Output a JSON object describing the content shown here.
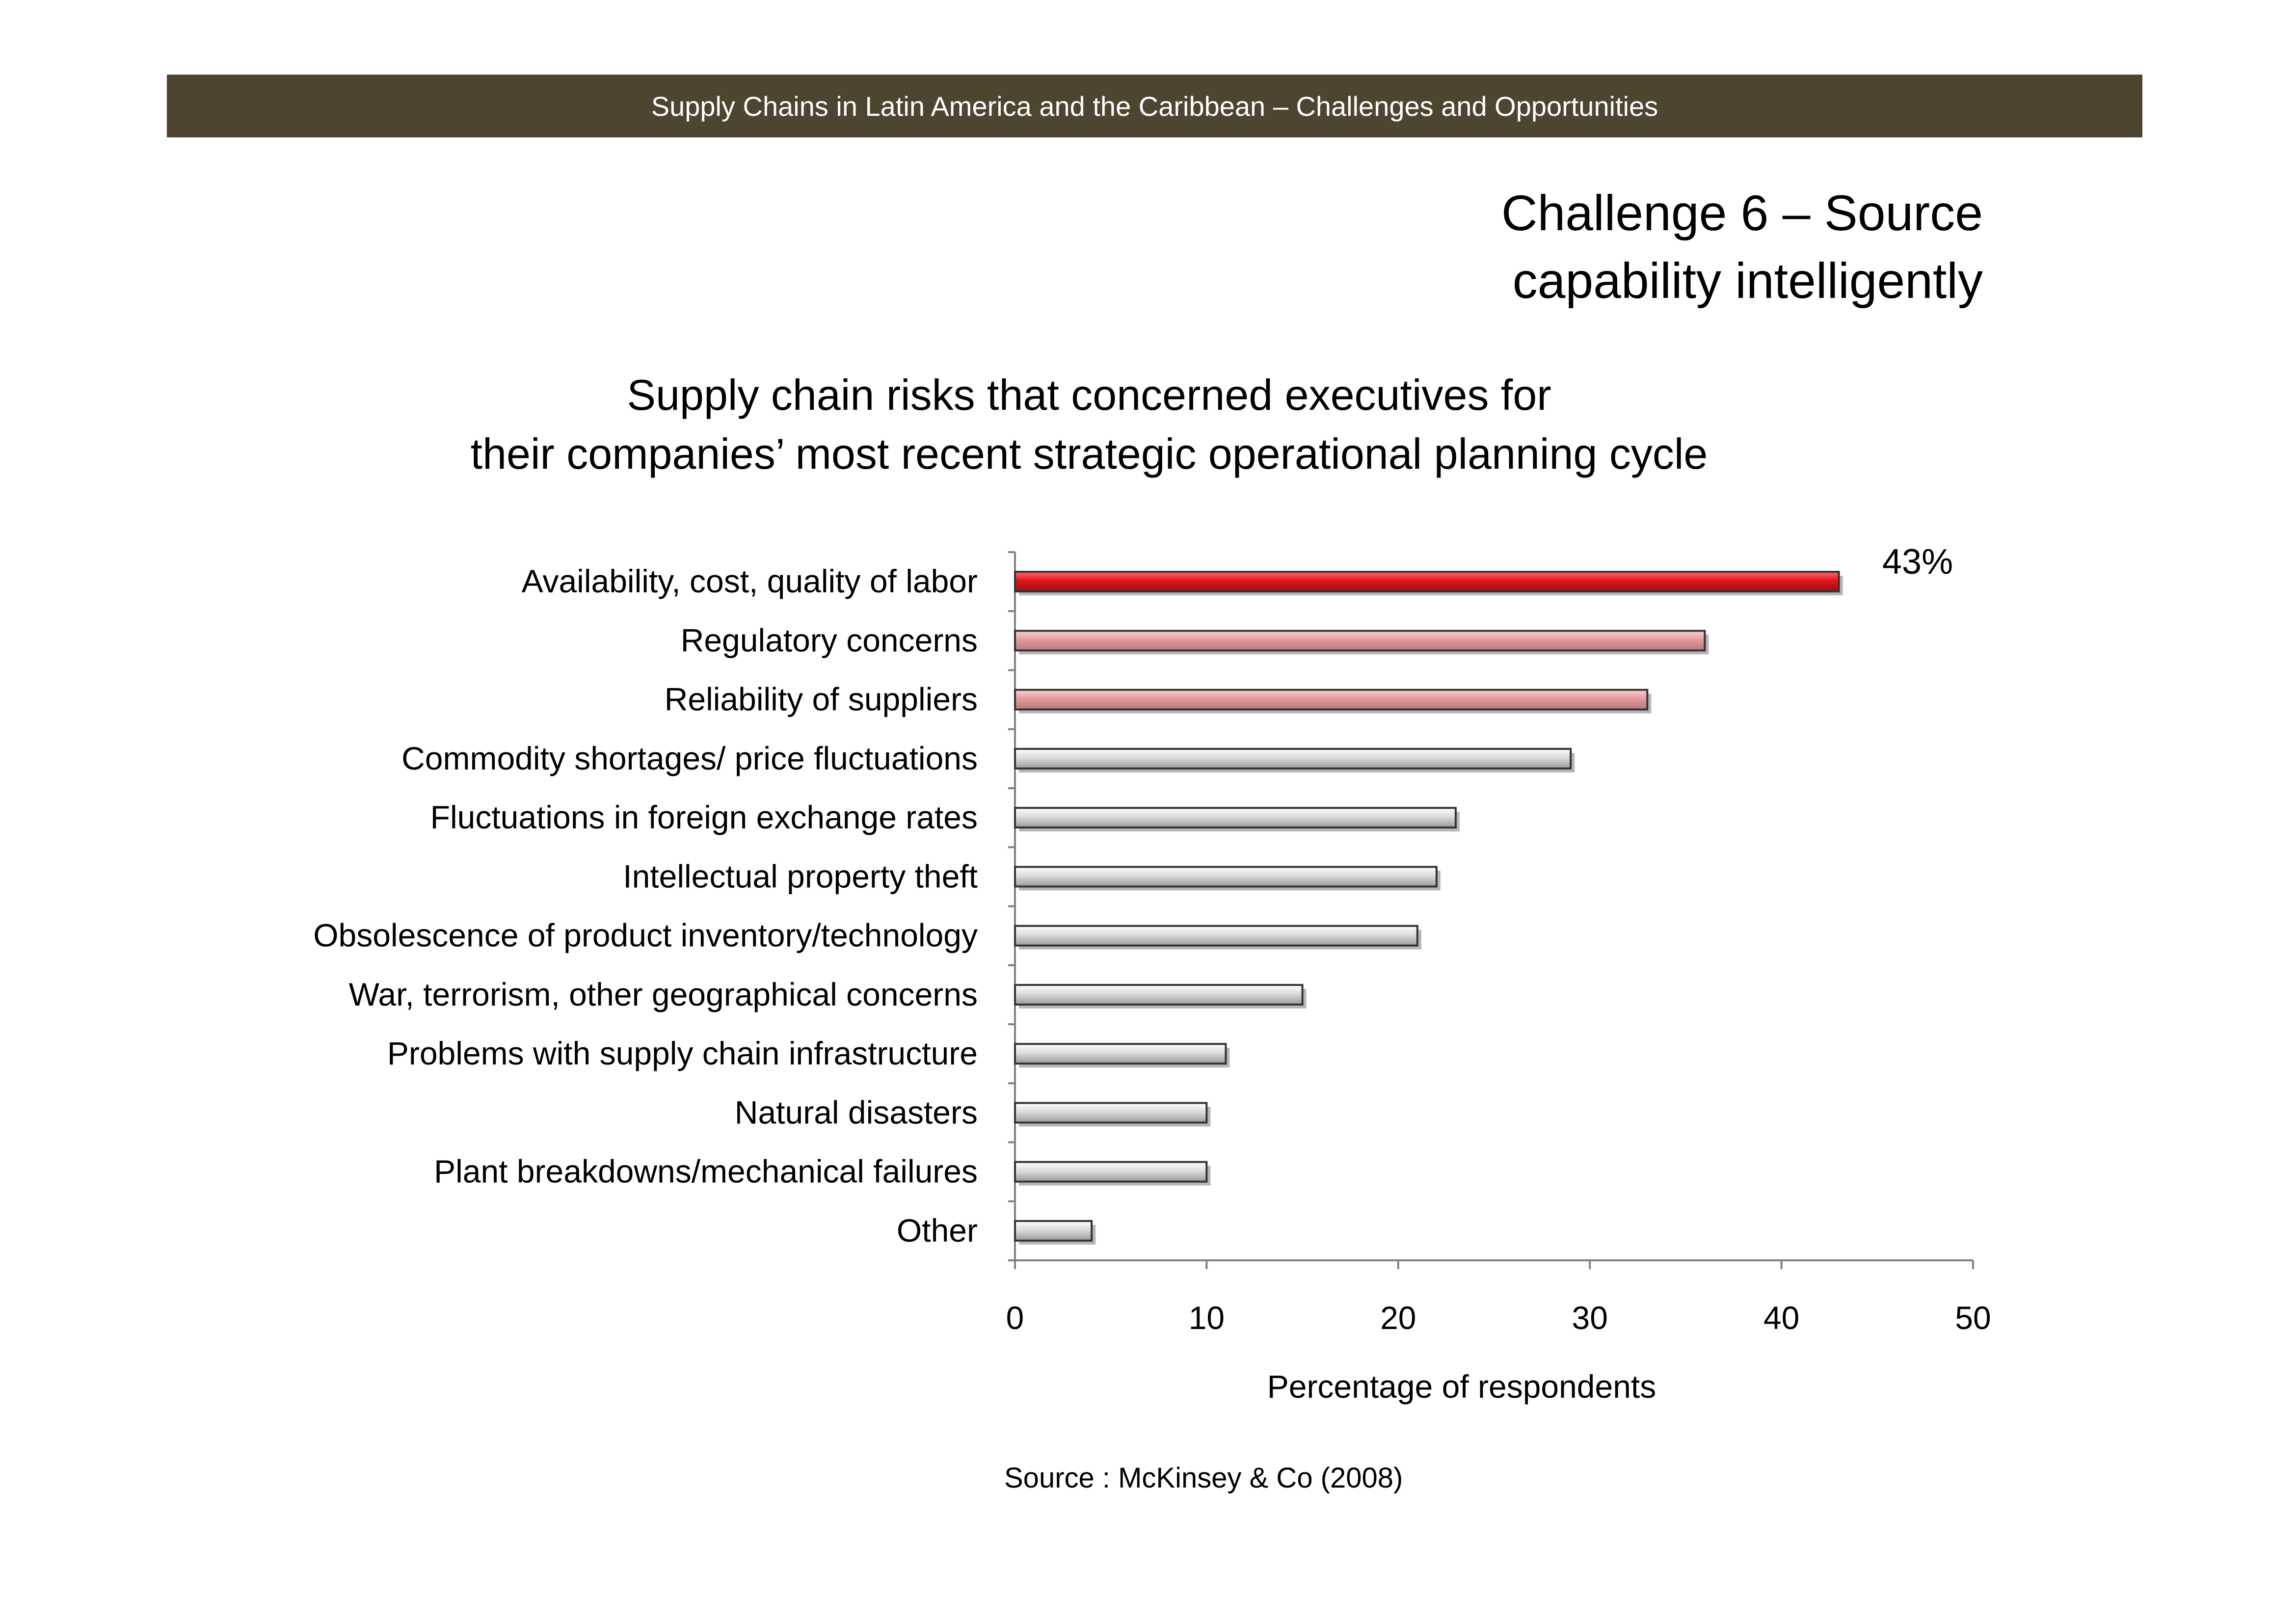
{
  "header": {
    "title": "Supply Chains in Latin America and the Caribbean – Challenges  and Opportunities",
    "bar_color": "#4d4530"
  },
  "slide": {
    "title_line1": "Challenge 6  –   Source",
    "title_line2": "capability intelligently"
  },
  "chart_data": {
    "type": "bar",
    "orientation": "horizontal",
    "title_line1": "Supply chain risks that concerned executives for",
    "title_line2": "their companies’ most recent strategic operational planning cycle",
    "categories": [
      "Availability, cost, quality of labor",
      "Regulatory concerns",
      "Reliability of suppliers",
      "Commodity shortages/ price fluctuations",
      "Fluctuations in foreign exchange rates",
      "Intellectual property theft",
      "Obsolescence of product inventory/technology",
      "War, terrorism, other geographical concerns",
      "Problems with supply chain infrastructure",
      "Natural disasters",
      "Plant breakdowns/mechanical failures",
      "Other"
    ],
    "values": [
      43,
      36,
      33,
      29,
      23,
      22,
      21,
      15,
      11,
      10,
      10,
      4
    ],
    "bar_styles": [
      "red",
      "pink",
      "pink",
      "gray",
      "gray",
      "gray",
      "gray",
      "gray",
      "gray",
      "gray",
      "gray",
      "gray"
    ],
    "data_labels": [
      {
        "index": 0,
        "text": "43%"
      }
    ],
    "xlabel": "Percentage of respondents",
    "xlim": [
      0,
      50
    ],
    "xticks": [
      0,
      10,
      20,
      30,
      40,
      50
    ],
    "grid": false,
    "legend": "none",
    "colors": {
      "red": "#d71920",
      "pink": "#e8a2a4",
      "gray": "#d8d8d8",
      "outline": "#333333",
      "axis": "#808080"
    }
  },
  "source": "Source : McKinsey & Co (2008)"
}
